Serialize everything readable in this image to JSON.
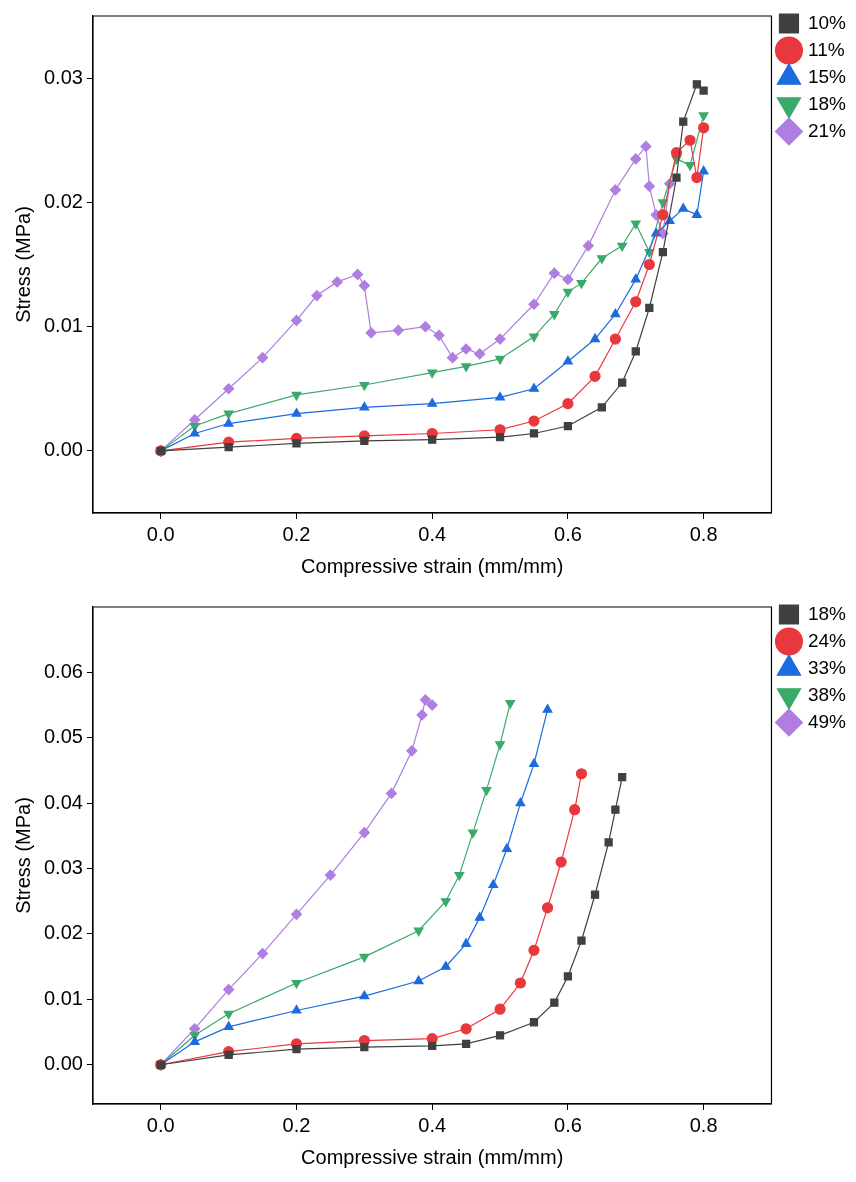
{
  "chart_data": [
    {
      "type": "line",
      "xlabel": "Compressive strain (mm/mm)",
      "ylabel": "Stress (MPa)",
      "xlim": [
        -0.1,
        0.9
      ],
      "ylim": [
        -0.005,
        0.035
      ],
      "xticks": [
        {
          "value": 0,
          "label": "0.0"
        },
        {
          "value": 0.2,
          "label": "0.2"
        },
        {
          "value": 0.4,
          "label": "0.4"
        },
        {
          "value": 0.6,
          "label": "0.6"
        },
        {
          "value": 0.8,
          "label": "0.8"
        }
      ],
      "yticks": [
        {
          "value": 0,
          "label": "0.00"
        },
        {
          "value": 0.01,
          "label": "0.01"
        },
        {
          "value": 0.02,
          "label": "0.02"
        },
        {
          "value": 0.03,
          "label": "0.03"
        }
      ],
      "grid": false,
      "legend": "top right",
      "series": [
        {
          "name": "10%",
          "color": "#404040",
          "marker": "square",
          "x": [
            0,
            0.1,
            0.2,
            0.3,
            0.4,
            0.5,
            0.55,
            0.6,
            0.65,
            0.68,
            0.7,
            0.72,
            0.74,
            0.76,
            0.77,
            0.79,
            0.8
          ],
          "values": [
            0,
            0.0003,
            0.0006,
            0.0008,
            0.0009,
            0.0011,
            0.0014,
            0.002,
            0.0035,
            0.0055,
            0.008,
            0.0115,
            0.016,
            0.022,
            0.0265,
            0.0295,
            0.029
          ]
        },
        {
          "name": "11%",
          "color": "#e8383d",
          "marker": "circle",
          "x": [
            0,
            0.1,
            0.2,
            0.3,
            0.4,
            0.5,
            0.55,
            0.6,
            0.64,
            0.67,
            0.7,
            0.72,
            0.74,
            0.76,
            0.78,
            0.79,
            0.8
          ],
          "values": [
            0,
            0.0007,
            0.001,
            0.0012,
            0.0014,
            0.0017,
            0.0024,
            0.0038,
            0.006,
            0.009,
            0.012,
            0.015,
            0.019,
            0.024,
            0.025,
            0.022,
            0.026
          ]
        },
        {
          "name": "15%",
          "color": "#1c6cde",
          "marker": "triangle",
          "x": [
            0,
            0.05,
            0.1,
            0.2,
            0.3,
            0.4,
            0.5,
            0.55,
            0.6,
            0.64,
            0.67,
            0.7,
            0.73,
            0.75,
            0.77,
            0.79,
            0.8
          ],
          "values": [
            0,
            0.0014,
            0.0022,
            0.003,
            0.0035,
            0.0038,
            0.0043,
            0.005,
            0.0072,
            0.009,
            0.011,
            0.0138,
            0.0175,
            0.0185,
            0.0195,
            0.019,
            0.0225
          ]
        },
        {
          "name": "18%",
          "color": "#3aaa6a",
          "marker": "triangle-down",
          "x": [
            0,
            0.05,
            0.1,
            0.2,
            0.3,
            0.4,
            0.45,
            0.5,
            0.55,
            0.58,
            0.6,
            0.62,
            0.65,
            0.68,
            0.7,
            0.72,
            0.74,
            0.76,
            0.78,
            0.8
          ],
          "values": [
            0,
            0.002,
            0.003,
            0.0045,
            0.0053,
            0.0063,
            0.0068,
            0.0074,
            0.0092,
            0.011,
            0.0128,
            0.0135,
            0.0155,
            0.0165,
            0.0183,
            0.016,
            0.02,
            0.0235,
            0.023,
            0.027
          ]
        },
        {
          "name": "21%",
          "color": "#b07ee0",
          "marker": "diamond",
          "x": [
            0,
            0.05,
            0.1,
            0.15,
            0.2,
            0.23,
            0.26,
            0.29,
            0.3,
            0.31,
            0.35,
            0.39,
            0.41,
            0.43,
            0.45,
            0.47,
            0.5,
            0.55,
            0.58,
            0.6,
            0.63,
            0.67,
            0.7,
            0.715,
            0.72,
            0.73,
            0.74,
            0.75
          ],
          "values": [
            0,
            0.0025,
            0.005,
            0.0075,
            0.0105,
            0.0125,
            0.0136,
            0.0142,
            0.0133,
            0.0095,
            0.0097,
            0.01,
            0.0093,
            0.0075,
            0.0082,
            0.0078,
            0.009,
            0.0118,
            0.0143,
            0.0138,
            0.0165,
            0.021,
            0.0235,
            0.0245,
            0.0213,
            0.019,
            0.0175,
            0.0215
          ]
        }
      ]
    },
    {
      "type": "line",
      "xlabel": "Compressive strain (mm/mm)",
      "ylabel": "Stress (MPa)",
      "xlim": [
        -0.1,
        0.9
      ],
      "ylim": [
        -0.006,
        0.07
      ],
      "xticks": [
        {
          "value": 0,
          "label": "0.0"
        },
        {
          "value": 0.2,
          "label": "0.2"
        },
        {
          "value": 0.4,
          "label": "0.4"
        },
        {
          "value": 0.6,
          "label": "0.6"
        },
        {
          "value": 0.8,
          "label": "0.8"
        }
      ],
      "yticks": [
        {
          "value": 0,
          "label": "0.00"
        },
        {
          "value": 0.01,
          "label": "0.01"
        },
        {
          "value": 0.02,
          "label": "0.02"
        },
        {
          "value": 0.03,
          "label": "0.03"
        },
        {
          "value": 0.04,
          "label": "0.04"
        },
        {
          "value": 0.05,
          "label": "0.05"
        },
        {
          "value": 0.06,
          "label": "0.06"
        }
      ],
      "grid": false,
      "legend": "top right",
      "series": [
        {
          "name": "18%",
          "color": "#404040",
          "marker": "square",
          "x": [
            0,
            0.1,
            0.2,
            0.3,
            0.4,
            0.45,
            0.5,
            0.55,
            0.58,
            0.6,
            0.62,
            0.64,
            0.66,
            0.67,
            0.68
          ],
          "values": [
            0,
            0.0015,
            0.0024,
            0.0027,
            0.0029,
            0.0032,
            0.0045,
            0.0065,
            0.0095,
            0.0135,
            0.019,
            0.026,
            0.034,
            0.039,
            0.044
          ]
        },
        {
          "name": "24%",
          "color": "#e8383d",
          "marker": "circle",
          "x": [
            0,
            0.1,
            0.2,
            0.3,
            0.4,
            0.45,
            0.5,
            0.53,
            0.55,
            0.57,
            0.59,
            0.61,
            0.62
          ],
          "values": [
            0,
            0.002,
            0.0032,
            0.0037,
            0.004,
            0.0055,
            0.0085,
            0.0125,
            0.0175,
            0.024,
            0.031,
            0.039,
            0.0445
          ]
        },
        {
          "name": "33%",
          "color": "#1c6cde",
          "marker": "triangle",
          "x": [
            0,
            0.05,
            0.1,
            0.2,
            0.3,
            0.38,
            0.42,
            0.45,
            0.47,
            0.49,
            0.51,
            0.53,
            0.55,
            0.57
          ],
          "values": [
            0,
            0.0035,
            0.0058,
            0.0083,
            0.0105,
            0.0128,
            0.015,
            0.0185,
            0.0225,
            0.0275,
            0.033,
            0.04,
            0.046,
            0.0543
          ]
        },
        {
          "name": "38%",
          "color": "#3aaa6a",
          "marker": "triangle-down",
          "x": [
            0,
            0.05,
            0.1,
            0.2,
            0.3,
            0.38,
            0.42,
            0.44,
            0.46,
            0.48,
            0.5,
            0.515
          ],
          "values": [
            0,
            0.0045,
            0.0078,
            0.0125,
            0.0165,
            0.0205,
            0.025,
            0.029,
            0.0355,
            0.042,
            0.049,
            0.0553
          ]
        },
        {
          "name": "49%",
          "color": "#b07ee0",
          "marker": "diamond",
          "x": [
            0,
            0.05,
            0.1,
            0.15,
            0.2,
            0.25,
            0.3,
            0.34,
            0.37,
            0.385,
            0.39,
            0.4
          ],
          "values": [
            0,
            0.0055,
            0.0115,
            0.017,
            0.023,
            0.029,
            0.0355,
            0.0415,
            0.048,
            0.0535,
            0.0558,
            0.055
          ]
        }
      ]
    }
  ]
}
